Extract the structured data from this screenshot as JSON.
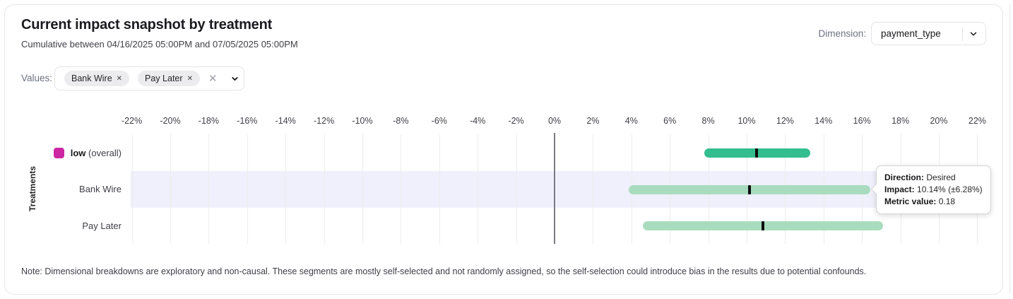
{
  "header": {
    "title": "Current impact snapshot by treatment",
    "subtitle": "Cumulative between 04/16/2025 05:00PM and 07/05/2025 05:00PM"
  },
  "dimension": {
    "label": "Dimension:",
    "selected": "payment_type"
  },
  "values_filter": {
    "label": "Values:",
    "chips": [
      {
        "label": "Bank Wire"
      },
      {
        "label": "Pay Later"
      }
    ]
  },
  "icons": {
    "chip_remove": "✕",
    "clear": "✕"
  },
  "tooltip": {
    "direction_label": "Direction:",
    "direction_value": "Desired",
    "impact_label": "Impact:",
    "impact_value": "10.14% (±6.28%)",
    "metric_label": "Metric value:",
    "metric_value": "0.18"
  },
  "note": {
    "text": "Note: Dimensional breakdowns are exploratory and non-causal. These segments are mostly self-selected and not randomly assigned, so the self-selection could introduce bias in the results due to potential confounds."
  },
  "chart_data": {
    "type": "bar",
    "subtype": "horizontal-range-confidence-intervals",
    "title": "Current impact snapshot by treatment",
    "ylabel": "Treatments",
    "xlim": [
      -23,
      23
    ],
    "grid": true,
    "xticks": [
      -22,
      -20,
      -18,
      -16,
      -14,
      -12,
      -10,
      -8,
      -6,
      -4,
      -2,
      0,
      2,
      4,
      6,
      8,
      10,
      12,
      14,
      16,
      18,
      20,
      22
    ],
    "xtick_suffix": "%",
    "rows": [
      {
        "label_bold": "low",
        "label_suffix": "(overall)",
        "swatch_color": "#cd26a2",
        "impact": 10.5,
        "ci_low": 7.8,
        "ci_high": 13.3,
        "bar_color": "#34bd8e",
        "highlighted": false
      },
      {
        "label": "Bank Wire",
        "impact": 10.14,
        "ci_low": 3.86,
        "ci_high": 16.42,
        "bar_color": "#a9dcbe",
        "highlighted": true,
        "direction": "Desired",
        "margin": 6.28,
        "metric_value": 0.18
      },
      {
        "label": "Pay Later",
        "impact": 10.85,
        "ci_low": 4.6,
        "ci_high": 17.1,
        "bar_color": "#a9dcbe",
        "highlighted": false
      }
    ],
    "colors": {
      "overall_bar": "#34bd8e",
      "segment_bar": "#a9dcbe",
      "point_marker": "#0b0b0c",
      "legend_swatch": "#cd26a2",
      "row_highlight": "#eff0fb",
      "zero_line": "#7b7b83",
      "gridline": "#ededed"
    }
  }
}
